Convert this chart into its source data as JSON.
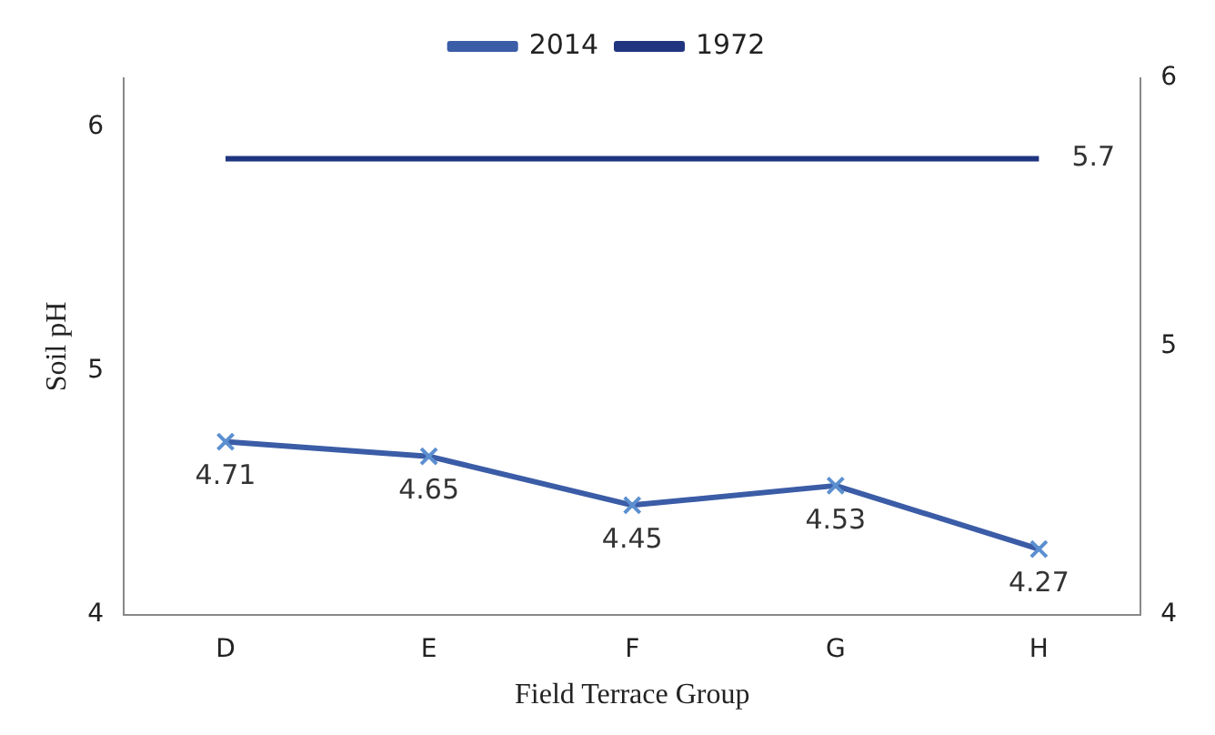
{
  "chart_data": {
    "type": "line",
    "xlabel": "Field Terrace Group",
    "ylabel": "Soil pH",
    "categories": [
      "D",
      "E",
      "F",
      "G",
      "H"
    ],
    "series": [
      {
        "name": "2014",
        "color": "#3b5ca6",
        "values": [
          4.71,
          4.65,
          4.45,
          4.53,
          4.27
        ],
        "marker": "cross",
        "value_labels": [
          "4.71",
          "4.65",
          "4.45",
          "4.53",
          "4.27"
        ]
      },
      {
        "name": "1972",
        "color": "#1f3580",
        "values": [
          5.7,
          5.7,
          5.7,
          5.7,
          5.7
        ],
        "axis": "y2",
        "marker": "none",
        "value_labels": [
          null,
          null,
          null,
          null,
          "5.7"
        ]
      }
    ],
    "ylim": [
      4,
      6.2
    ],
    "yticks": [
      4,
      5,
      6
    ],
    "y2lim": [
      4,
      6
    ],
    "y2ticks": [
      4,
      5,
      6
    ],
    "grid": false,
    "legend": "top"
  }
}
